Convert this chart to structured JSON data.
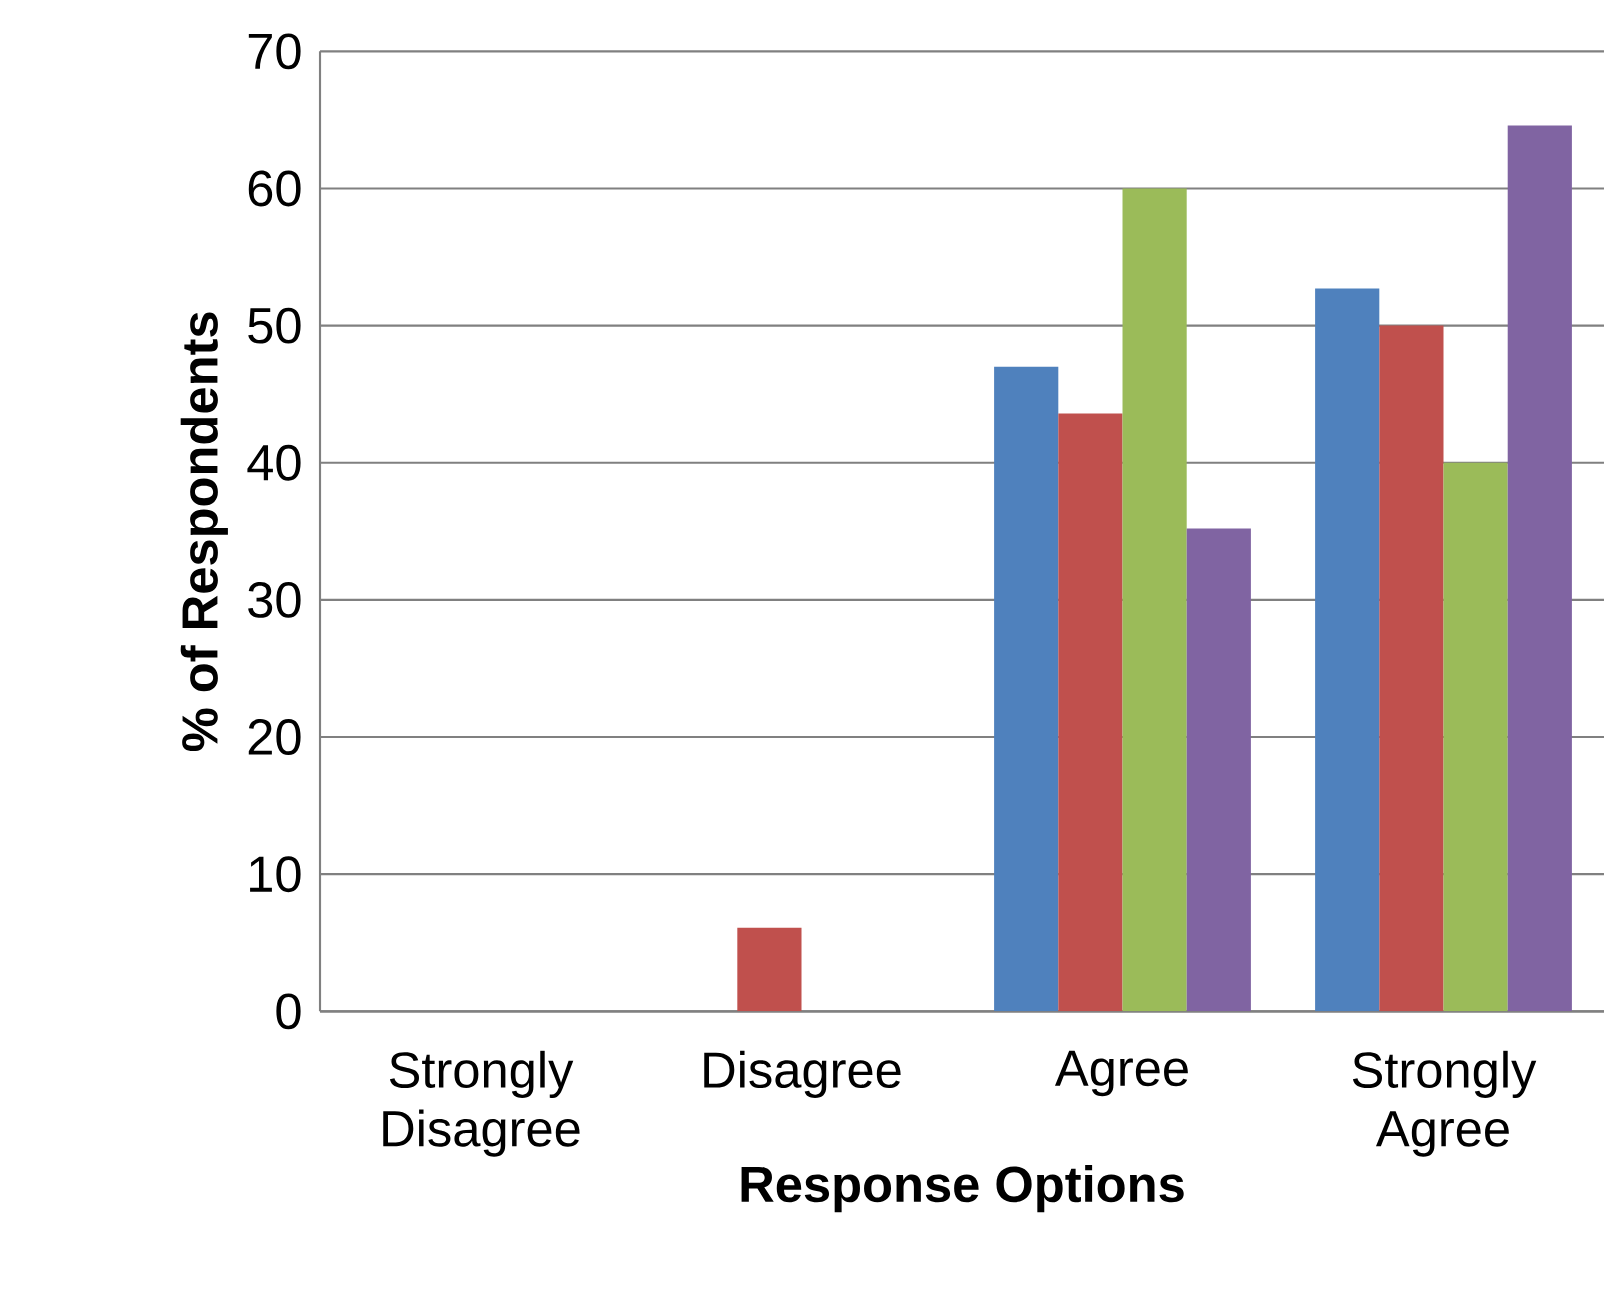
{
  "chart_data": {
    "type": "bar",
    "xlabel": "Response Options",
    "ylabel": "% of Respondents",
    "categories": [
      "Strongly Disagree",
      "Disagree",
      "Agree",
      "Strongly Agree"
    ],
    "series": [
      {
        "color": "#4f81bd",
        "values": [
          0,
          0,
          47.0,
          52.7
        ]
      },
      {
        "color": "#c0504d",
        "values": [
          0,
          6.1,
          43.6,
          50.0
        ]
      },
      {
        "color": "#9bbb59",
        "values": [
          0,
          0,
          60.0,
          40.0
        ]
      },
      {
        "color": "#8064a2",
        "values": [
          0,
          0,
          35.2,
          64.6
        ]
      }
    ],
    "ylim": [
      0,
      70
    ],
    "yticks": [
      0,
      10,
      20,
      30,
      40,
      50,
      60,
      70
    ],
    "grid": "y"
  }
}
